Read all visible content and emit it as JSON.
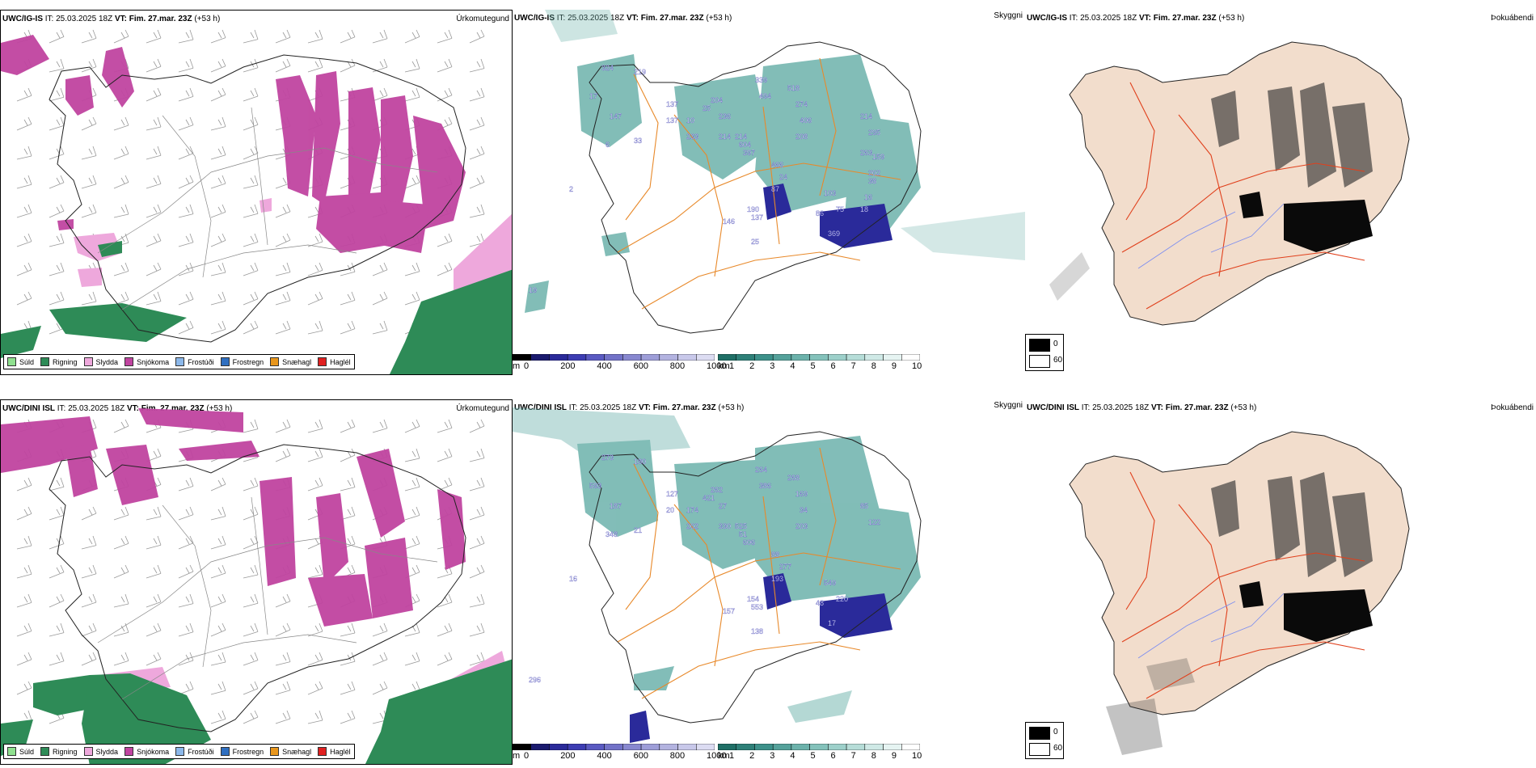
{
  "rows": [
    {
      "model": "UWC/IG-IS",
      "it_label": "IT:",
      "it_value": "25.03.2025 18Z",
      "vt_label": "VT:",
      "vt_value": "Fim. 27.mar. 23Z",
      "lead": "(+53 h)",
      "panels": {
        "precip": "Úrkomutegund",
        "ceiling": "Skyggni",
        "fog": "Þokuábendi"
      },
      "ceiling_labels": [
        "324",
        "219",
        "17",
        "147",
        "6",
        "33",
        "2",
        "19",
        "137",
        "137",
        "10",
        "233",
        "25",
        "204",
        "236",
        "214",
        "214",
        "604",
        "397",
        "339",
        "494",
        "518",
        "274",
        "406",
        "208",
        "87",
        "190",
        "146",
        "137",
        "25",
        "466",
        "24",
        "103",
        "86",
        "75",
        "369",
        "214",
        "295",
        "263",
        "202",
        "159",
        "38",
        "16",
        "18"
      ]
    },
    {
      "model": "UWC/DINI ISL",
      "it_label": "IT:",
      "it_value": "25.03.2025 18Z",
      "vt_label": "VT:",
      "vt_value": "Fim. 27.mar. 23Z",
      "lead": "(+53 h)",
      "panels": {
        "precip": "Úrkomutegund",
        "ceiling": "Skyggni",
        "fog": "Þokuábendi"
      },
      "ceiling_labels": [
        "273",
        "180",
        "593",
        "187",
        "348",
        "21",
        "16",
        "296",
        "127",
        "20",
        "174",
        "202",
        "421",
        "262",
        "27",
        "330",
        "525",
        "51",
        "606",
        "264",
        "386",
        "268",
        "169",
        "34",
        "203",
        "193",
        "154",
        "157",
        "553",
        "138",
        "88",
        "277",
        "549",
        "48",
        "220",
        "17",
        "85",
        "122"
      ]
    }
  ],
  "precip_legend": [
    {
      "label": "Súld",
      "color": "#8fe08f"
    },
    {
      "label": "Rigning",
      "color": "#2e8b57"
    },
    {
      "label": "Slydda",
      "color": "#eea8dc"
    },
    {
      "label": "Snjókoma",
      "color": "#c044a0"
    },
    {
      "label": "Frostúði",
      "color": "#8cb8ea"
    },
    {
      "label": "Frostregn",
      "color": "#2f6fc0"
    },
    {
      "label": "Snæhagl",
      "color": "#e8961c"
    },
    {
      "label": "Haglél",
      "color": "#e02020"
    }
  ],
  "ceiling_bar": {
    "unit": "m",
    "ticks": [
      "0",
      "200",
      "400",
      "600",
      "800",
      "1000"
    ],
    "colors": [
      "#000000",
      "#1a1a6e",
      "#2a2a9a",
      "#3d3db3",
      "#5a5ac2",
      "#7272c8",
      "#8888d0",
      "#9e9ed8",
      "#b3b3e0",
      "#c8c8ea",
      "#dcdcf2"
    ]
  },
  "visibility_bar": {
    "unit": "km",
    "ticks": [
      "1",
      "2",
      "3",
      "4",
      "5",
      "6",
      "7",
      "8",
      "9",
      "10"
    ],
    "colors": [
      "#1f6f66",
      "#2e8078",
      "#3d918a",
      "#55a29b",
      "#6cb2ab",
      "#84c2bb",
      "#9dd0ca",
      "#b6ddd8",
      "#cfe9e6",
      "#e6f4f2",
      "#ffffff"
    ]
  },
  "fog_legend": [
    {
      "label": "0",
      "color": "#000000"
    },
    {
      "label": "60",
      "color": "#ffffff"
    }
  ]
}
